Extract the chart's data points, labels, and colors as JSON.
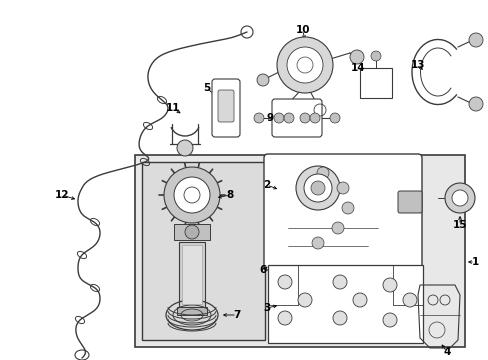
{
  "bg_color": "#ffffff",
  "fig_width": 4.89,
  "fig_height": 3.6,
  "dpi": 100,
  "line_color": "#3a3a3a",
  "gray_fill": "#e8e8e8",
  "white_fill": "#ffffff"
}
